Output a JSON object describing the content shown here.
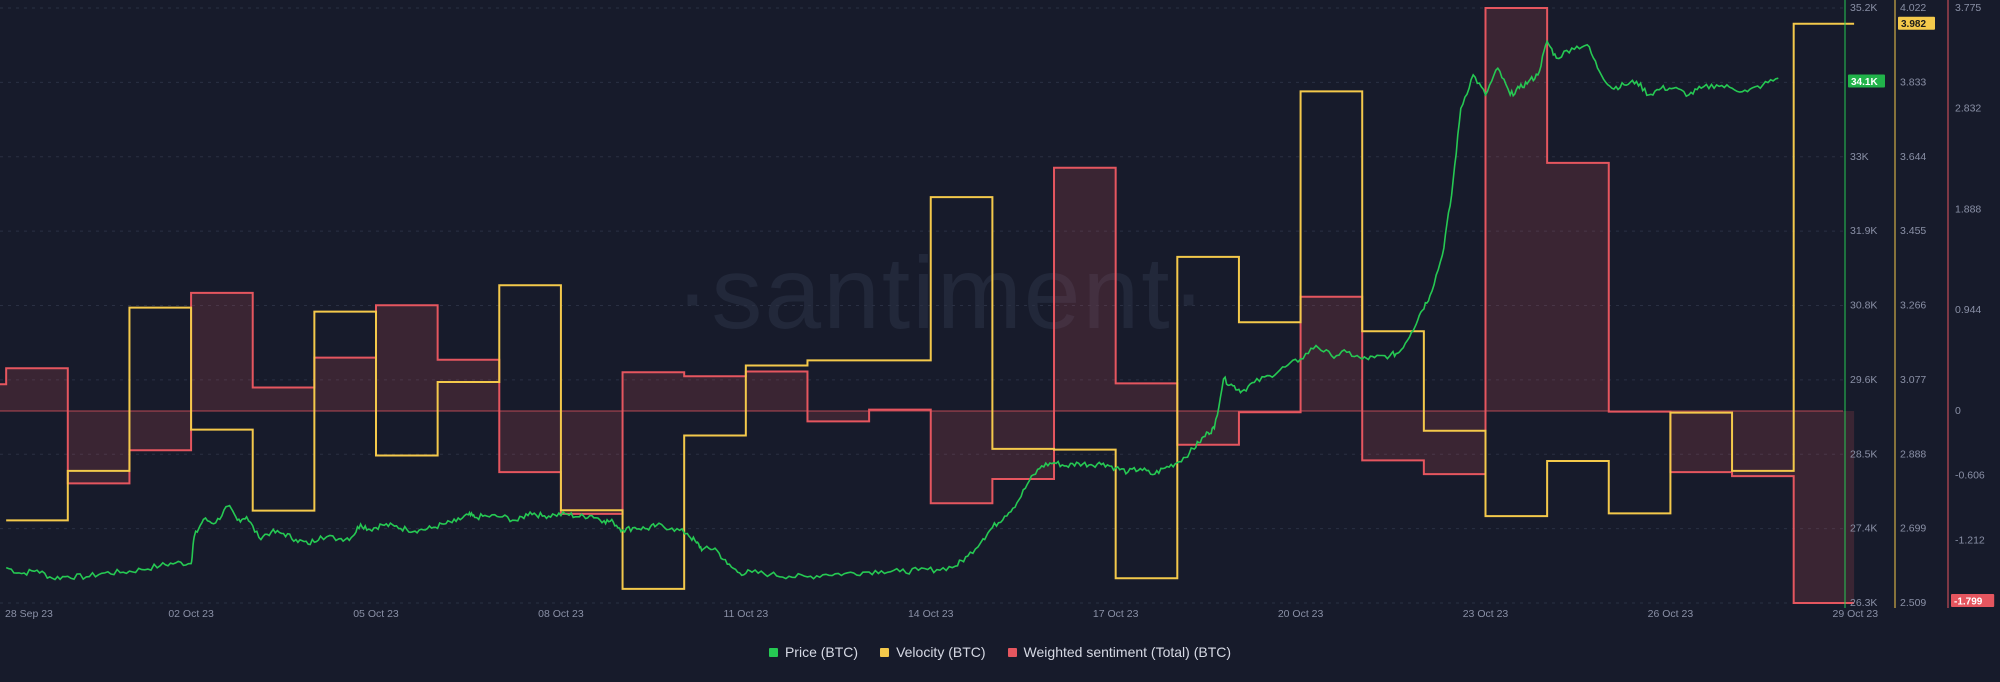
{
  "watermark": "·santiment·",
  "colors": {
    "background": "#171b2b",
    "grid": "#2a3043",
    "price": "#26c953",
    "velocity": "#f4c94b",
    "sentiment": "#e5565f",
    "sentiment_fill": "rgba(229,86,95,0.17)",
    "axis_text": "#8a90a6"
  },
  "legend": [
    {
      "label": "Price (BTC)",
      "color": "#26c953"
    },
    {
      "label": "Velocity (BTC)",
      "color": "#f4c94b"
    },
    {
      "label": "Weighted sentiment (Total) (BTC)",
      "color": "#e5565f"
    }
  ],
  "chart_data": {
    "type": "line",
    "title": "",
    "x_start": "28 Sep 23",
    "x_end": "29 Oct 23",
    "x_tick_labels": [
      "28 Sep 23",
      "02 Oct 23",
      "05 Oct 23",
      "08 Oct 23",
      "11 Oct 23",
      "14 Oct 23",
      "17 Oct 23",
      "20 Oct 23",
      "23 Oct 23",
      "26 Oct 23",
      "29 Oct 23"
    ],
    "axes": {
      "price": {
        "ticks": [
          "35.2K",
          "34.1K",
          "33K",
          "31.9K",
          "30.8K",
          "29.6K",
          "28.5K",
          "27.4K",
          "26.3K"
        ],
        "ylim": [
          26300,
          35200
        ],
        "current_label": "34.1K",
        "current_value": 34100
      },
      "velocity": {
        "ticks": [
          "4.022",
          "3.833",
          "3.644",
          "3.455",
          "3.266",
          "3.077",
          "2.888",
          "2.699",
          "2.509"
        ],
        "ylim": [
          2.509,
          4.022
        ],
        "current_label": "3.982",
        "current_value": 3.982
      },
      "sentiment": {
        "ticks": [
          "3.775",
          "2.832",
          "1.888",
          "0.944",
          "0",
          "-0.606",
          "-1.212",
          "-1.799"
        ],
        "ylim": [
          -1.799,
          3.775
        ],
        "current_label": "-1.799",
        "current_value": -1.799
      }
    },
    "series": [
      {
        "name": "Price (BTC)",
        "axis": "price",
        "step": false,
        "points": [
          [
            0,
            26830
          ],
          [
            0.25,
            26740
          ],
          [
            0.5,
            26790
          ],
          [
            0.75,
            26670
          ],
          [
            1,
            26700
          ],
          [
            1.3,
            26690
          ],
          [
            1.6,
            26750
          ],
          [
            1.9,
            26760
          ],
          [
            2.2,
            26800
          ],
          [
            2.5,
            26860
          ],
          [
            2.75,
            26900
          ],
          [
            3,
            26890
          ],
          [
            3.05,
            27290
          ],
          [
            3.2,
            27550
          ],
          [
            3.4,
            27500
          ],
          [
            3.6,
            27750
          ],
          [
            3.75,
            27540
          ],
          [
            3.9,
            27590
          ],
          [
            4.1,
            27280
          ],
          [
            4.3,
            27360
          ],
          [
            4.5,
            27340
          ],
          [
            4.7,
            27250
          ],
          [
            4.9,
            27180
          ],
          [
            5.1,
            27300
          ],
          [
            5.4,
            27260
          ],
          [
            5.6,
            27280
          ],
          [
            5.75,
            27480
          ],
          [
            5.9,
            27400
          ],
          [
            6.1,
            27470
          ],
          [
            6.3,
            27450
          ],
          [
            6.5,
            27400
          ],
          [
            6.7,
            27390
          ],
          [
            6.9,
            27420
          ],
          [
            7.1,
            27480
          ],
          [
            7.3,
            27520
          ],
          [
            7.5,
            27620
          ],
          [
            7.6,
            27580
          ],
          [
            7.8,
            27600
          ],
          [
            8.05,
            27590
          ],
          [
            8.3,
            27530
          ],
          [
            8.5,
            27660
          ],
          [
            8.7,
            27600
          ],
          [
            8.9,
            27620
          ],
          [
            9.1,
            27630
          ],
          [
            9.3,
            27590
          ],
          [
            9.5,
            27610
          ],
          [
            9.7,
            27530
          ],
          [
            9.85,
            27510
          ],
          [
            10,
            27390
          ],
          [
            10.2,
            27430
          ],
          [
            10.4,
            27410
          ],
          [
            10.55,
            27460
          ],
          [
            10.8,
            27420
          ],
          [
            11.05,
            27340
          ],
          [
            11.2,
            27200
          ],
          [
            11.3,
            27100
          ],
          [
            11.5,
            27120
          ],
          [
            11.7,
            26880
          ],
          [
            11.9,
            26750
          ],
          [
            12.1,
            26760
          ],
          [
            12.4,
            26730
          ],
          [
            12.7,
            26700
          ],
          [
            13,
            26690
          ],
          [
            13.3,
            26730
          ],
          [
            13.6,
            26740
          ],
          [
            13.9,
            26760
          ],
          [
            14.2,
            26780
          ],
          [
            14.5,
            26770
          ],
          [
            14.8,
            26790
          ],
          [
            15.1,
            26800
          ],
          [
            15.4,
            26850
          ],
          [
            15.6,
            27000
          ],
          [
            15.85,
            27260
          ],
          [
            16,
            27430
          ],
          [
            16.2,
            27600
          ],
          [
            16.4,
            27800
          ],
          [
            16.6,
            28130
          ],
          [
            16.8,
            28350
          ],
          [
            17,
            28400
          ],
          [
            17.2,
            28350
          ],
          [
            17.4,
            28390
          ],
          [
            17.6,
            28370
          ],
          [
            17.8,
            28390
          ],
          [
            18,
            28320
          ],
          [
            18.2,
            28260
          ],
          [
            18.4,
            28310
          ],
          [
            18.6,
            28220
          ],
          [
            18.8,
            28320
          ],
          [
            19,
            28400
          ],
          [
            19.2,
            28550
          ],
          [
            19.35,
            28700
          ],
          [
            19.5,
            28850
          ],
          [
            19.6,
            28910
          ],
          [
            19.75,
            29650
          ],
          [
            19.9,
            29550
          ],
          [
            20.05,
            29470
          ],
          [
            20.25,
            29600
          ],
          [
            20.5,
            29700
          ],
          [
            20.75,
            29830
          ],
          [
            21,
            29950
          ],
          [
            21.25,
            30150
          ],
          [
            21.5,
            30000
          ],
          [
            21.75,
            30050
          ],
          [
            22,
            29950
          ],
          [
            22.2,
            29970
          ],
          [
            22.45,
            30000
          ],
          [
            22.6,
            30050
          ],
          [
            22.8,
            30350
          ],
          [
            22.95,
            30650
          ],
          [
            23.1,
            30900
          ],
          [
            23.3,
            31500
          ],
          [
            23.45,
            32400
          ],
          [
            23.6,
            33700
          ],
          [
            23.8,
            34200
          ],
          [
            24,
            33900
          ],
          [
            24.2,
            34300
          ],
          [
            24.4,
            33900
          ],
          [
            24.55,
            34000
          ],
          [
            24.7,
            34100
          ],
          [
            24.85,
            34200
          ],
          [
            25,
            34700
          ],
          [
            25.15,
            34450
          ],
          [
            25.4,
            34600
          ],
          [
            25.65,
            34650
          ],
          [
            25.85,
            34250
          ],
          [
            26.05,
            34000
          ],
          [
            26.25,
            34050
          ],
          [
            26.45,
            34100
          ],
          [
            26.65,
            33900
          ],
          [
            26.85,
            34000
          ],
          [
            27.05,
            34000
          ],
          [
            27.3,
            33900
          ],
          [
            27.5,
            34000
          ],
          [
            27.75,
            34050
          ],
          [
            28,
            34000
          ],
          [
            28.25,
            33950
          ],
          [
            28.5,
            34050
          ],
          [
            28.75,
            34150
          ]
        ]
      },
      {
        "name": "Velocity (BTC)",
        "axis": "velocity",
        "step": true,
        "points": [
          [
            0,
            2.719
          ],
          [
            1,
            2.845
          ],
          [
            2,
            3.26
          ],
          [
            3,
            2.95
          ],
          [
            4,
            2.744
          ],
          [
            5,
            3.25
          ],
          [
            6,
            2.884
          ],
          [
            7,
            3.071
          ],
          [
            8,
            3.317
          ],
          [
            9,
            2.745
          ],
          [
            10,
            2.545
          ],
          [
            11,
            2.935
          ],
          [
            12,
            3.113
          ],
          [
            13,
            3.126
          ],
          [
            14,
            3.126
          ],
          [
            15,
            3.541
          ],
          [
            16,
            2.901
          ],
          [
            17,
            2.899
          ],
          [
            18,
            2.572
          ],
          [
            19,
            3.389
          ],
          [
            20,
            3.223
          ],
          [
            21,
            3.81
          ],
          [
            22,
            3.2
          ],
          [
            23,
            2.947
          ],
          [
            24,
            2.73
          ],
          [
            25,
            2.87
          ],
          [
            26,
            2.737
          ],
          [
            27,
            2.993
          ],
          [
            28,
            2.845
          ],
          [
            29,
            3.982
          ]
        ]
      },
      {
        "name": "Weighted sentiment (Total) (BTC)",
        "axis": "sentiment",
        "step": true,
        "points": [
          [
            -0.25,
            0.25
          ],
          [
            0,
            0.4
          ],
          [
            1,
            -0.678
          ],
          [
            2,
            -0.368
          ],
          [
            3,
            1.106
          ],
          [
            4,
            0.22
          ],
          [
            5,
            0.5
          ],
          [
            6,
            0.99
          ],
          [
            7,
            0.48
          ],
          [
            8,
            -0.573
          ],
          [
            9,
            -0.964
          ],
          [
            10,
            0.363
          ],
          [
            11,
            0.325
          ],
          [
            12,
            0.37
          ],
          [
            13,
            -0.097
          ],
          [
            14,
            0.013
          ],
          [
            15,
            -0.864
          ],
          [
            16,
            -0.637
          ],
          [
            17,
            2.278
          ],
          [
            18,
            0.259
          ],
          [
            19,
            -0.317
          ],
          [
            20,
            -0.012
          ],
          [
            21,
            1.07
          ],
          [
            22,
            -0.463
          ],
          [
            23,
            -0.592
          ],
          [
            24,
            3.775
          ],
          [
            25,
            2.324
          ],
          [
            26,
            -0.006
          ],
          [
            27,
            -0.573
          ],
          [
            28,
            -0.611
          ],
          [
            29,
            -1.799
          ]
        ]
      }
    ],
    "grid": true,
    "legend_position": "bottom-center"
  }
}
